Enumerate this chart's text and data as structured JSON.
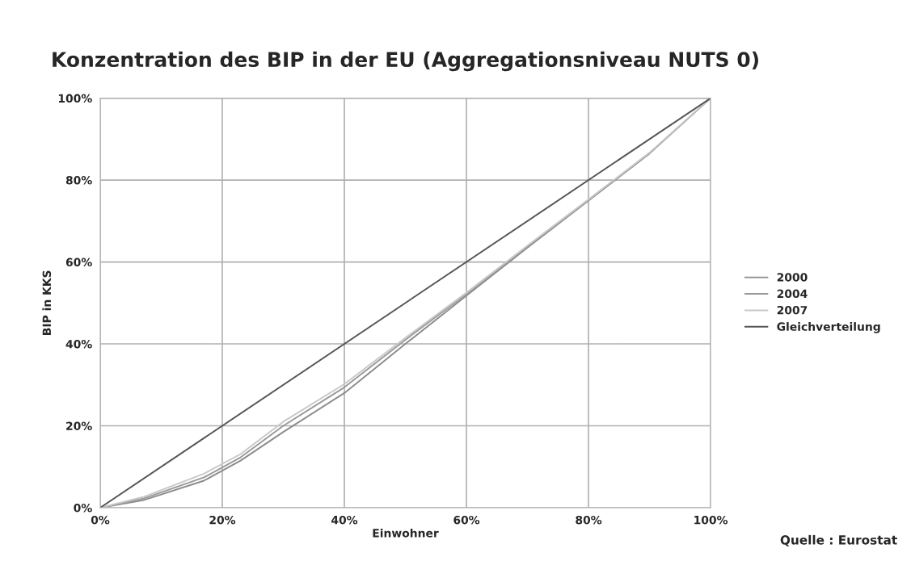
{
  "chart_data": {
    "type": "line",
    "title": "Konzentration des BIP in der EU (Aggregationsniveau NUTS 0)",
    "xlabel": "Einwohner",
    "ylabel": "BIP in KKS",
    "series": [
      {
        "name": "2000",
        "color": "#8c8c8c",
        "x": [
          0,
          7,
          17,
          23,
          30,
          40,
          50,
          60,
          70,
          80,
          90,
          100
        ],
        "values": [
          0,
          1.8,
          6.6,
          11.5,
          18.5,
          28,
          40,
          51.8,
          63.5,
          75,
          86.5,
          100
        ]
      },
      {
        "name": "2004",
        "color": "#999999",
        "x": [
          0,
          7,
          17,
          23,
          30,
          40,
          50,
          60,
          70,
          80,
          90,
          100
        ],
        "values": [
          0,
          2.2,
          7.4,
          12.3,
          20,
          29.4,
          41,
          52.2,
          63.8,
          75.1,
          86.6,
          100
        ]
      },
      {
        "name": "2007",
        "color": "#c8c8c8",
        "x": [
          0,
          7,
          17,
          23,
          30,
          40,
          50,
          60,
          70,
          80,
          90,
          100
        ],
        "values": [
          0,
          2.6,
          8.3,
          13.1,
          21,
          30.2,
          41.5,
          52.5,
          64,
          75.3,
          86.7,
          100
        ]
      },
      {
        "name": "Gleichverteilung",
        "color": "#555555",
        "x": [
          0,
          100
        ],
        "values": [
          0,
          100
        ]
      }
    ],
    "xlim": [
      0,
      100
    ],
    "ylim": [
      0,
      100
    ],
    "xticks": [
      {
        "value": 0,
        "label": "0%"
      },
      {
        "value": 20,
        "label": "20%"
      },
      {
        "value": 40,
        "label": "40%"
      },
      {
        "value": 60,
        "label": "60%"
      },
      {
        "value": 80,
        "label": "80%"
      },
      {
        "value": 100,
        "label": "100%"
      }
    ],
    "yticks": [
      {
        "value": 0,
        "label": "0%"
      },
      {
        "value": 20,
        "label": "20%"
      },
      {
        "value": 40,
        "label": "40%"
      },
      {
        "value": 60,
        "label": "60%"
      },
      {
        "value": 80,
        "label": "80%"
      },
      {
        "value": 100,
        "label": "100%"
      }
    ],
    "grid": true,
    "legend": "right",
    "marker": "none",
    "line_style": "solid",
    "annotations": [
      "Quelle : Eurostat"
    ]
  }
}
